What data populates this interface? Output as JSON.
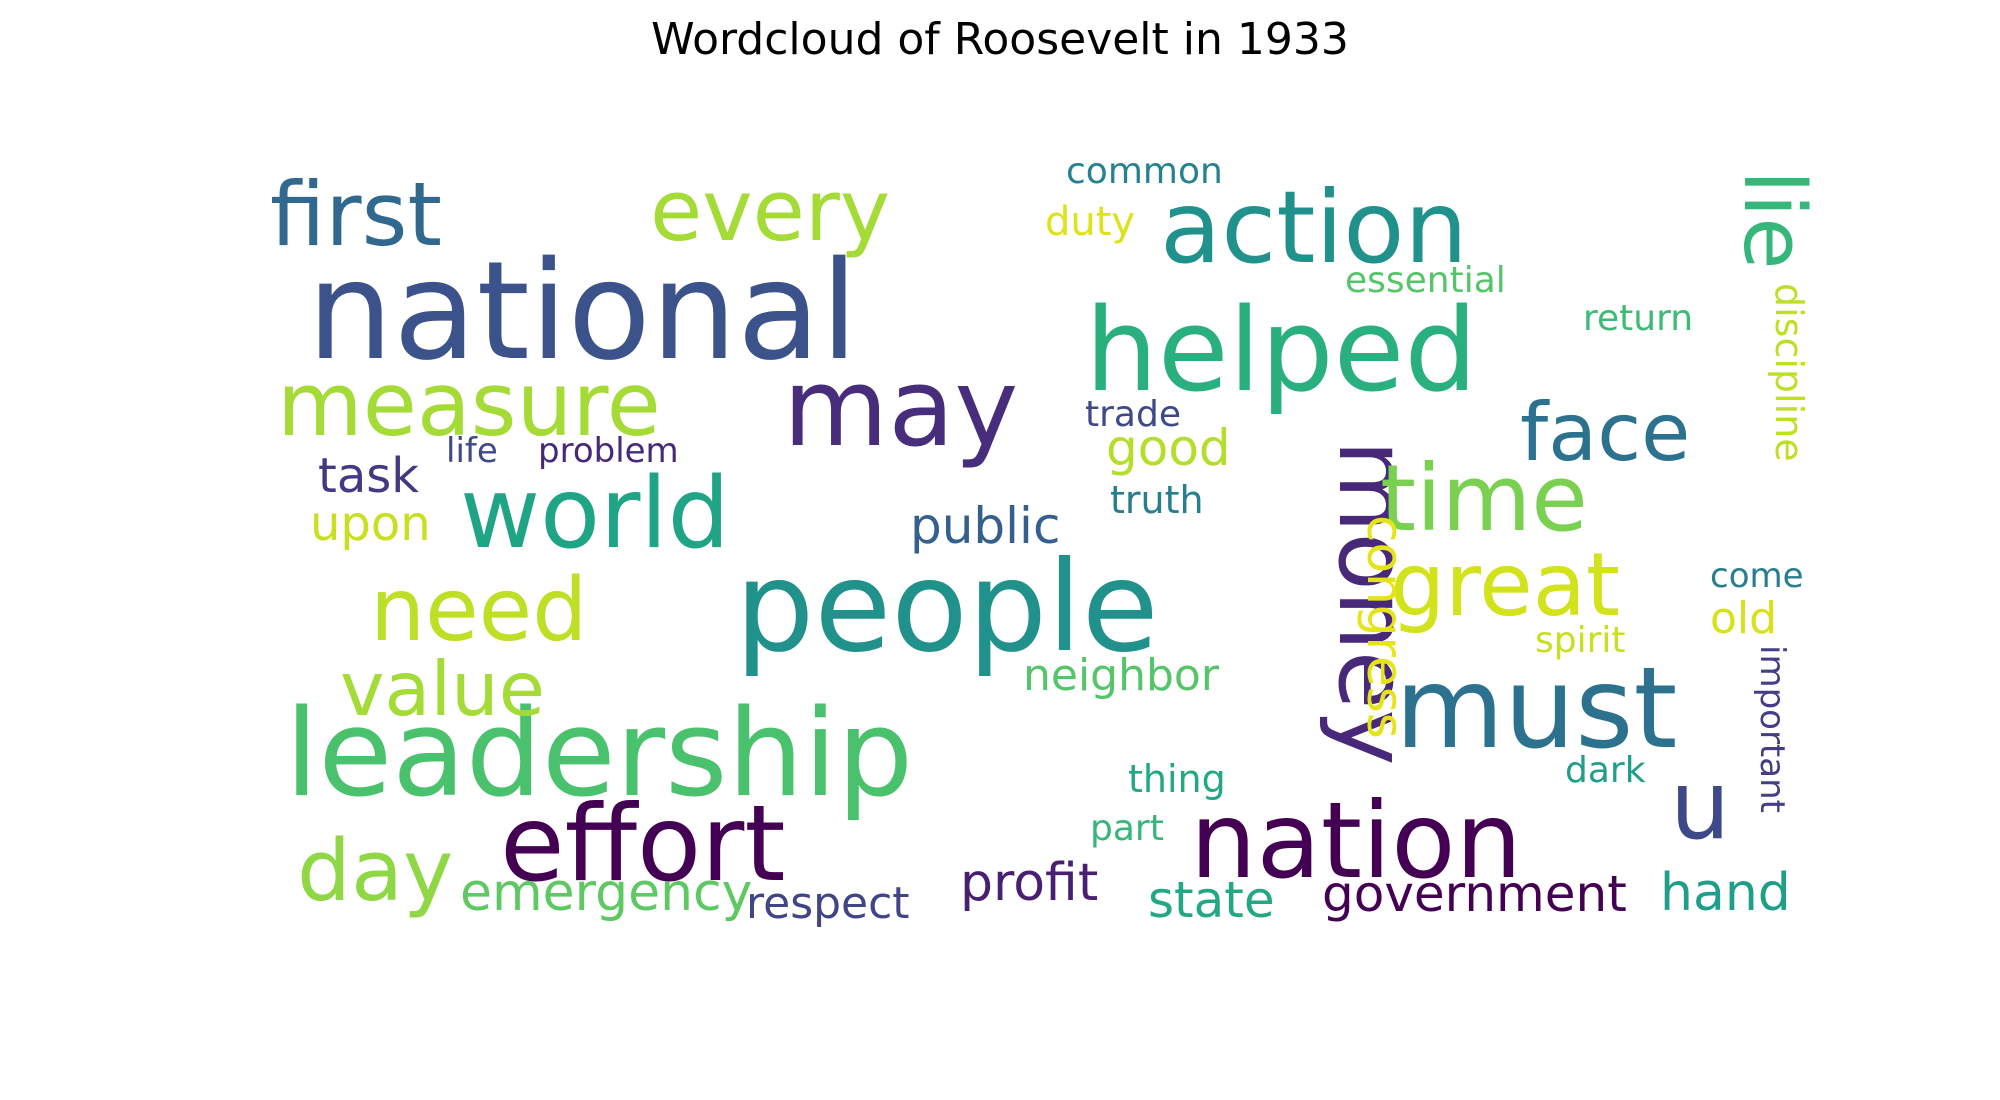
{
  "title": "Wordcloud of Roosevelt in 1933",
  "words": [
    {
      "text": "national",
      "color": "#3b528b"
    },
    {
      "text": "people",
      "color": "#21918c"
    },
    {
      "text": "leadership",
      "color": "#4ac16d"
    },
    {
      "text": "helped",
      "color": "#2ab07f"
    },
    {
      "text": "may",
      "color": "#472d7b"
    },
    {
      "text": "effort",
      "color": "#440154"
    },
    {
      "text": "nation",
      "color": "#440154"
    },
    {
      "text": "must",
      "color": "#2c728e"
    },
    {
      "text": "action",
      "color": "#21918c"
    },
    {
      "text": "world",
      "color": "#20a486"
    },
    {
      "text": "first",
      "color": "#31688e"
    },
    {
      "text": "measure",
      "color": "#a5db36"
    },
    {
      "text": "every",
      "color": "#a5db36"
    },
    {
      "text": "money",
      "color": "#482878"
    },
    {
      "text": "time",
      "color": "#7ad151"
    },
    {
      "text": "great",
      "color": "#d2e21b"
    },
    {
      "text": "need",
      "color": "#bddf26"
    },
    {
      "text": "day",
      "color": "#8fd744"
    },
    {
      "text": "value",
      "color": "#a5db36"
    },
    {
      "text": "lie",
      "color": "#35b779"
    },
    {
      "text": "face",
      "color": "#2c728e"
    },
    {
      "text": "u",
      "color": "#3e4989"
    },
    {
      "text": "emergency",
      "color": "#5ec962"
    },
    {
      "text": "government",
      "color": "#440154"
    },
    {
      "text": "profit",
      "color": "#481f71"
    },
    {
      "text": "public",
      "color": "#355f8d"
    },
    {
      "text": "state",
      "color": "#22a884"
    },
    {
      "text": "hand",
      "color": "#1f9e89"
    },
    {
      "text": "congress",
      "color": "#e5e419"
    },
    {
      "text": "good",
      "color": "#b5de2b"
    },
    {
      "text": "neighbor",
      "color": "#54c568"
    },
    {
      "text": "task",
      "color": "#453781"
    },
    {
      "text": "upon",
      "color": "#c8e020"
    },
    {
      "text": "respect",
      "color": "#414487"
    },
    {
      "text": "discipline",
      "color": "#bddf26"
    },
    {
      "text": "old",
      "color": "#d8e219"
    },
    {
      "text": "important",
      "color": "#433e85"
    },
    {
      "text": "common",
      "color": "#26828e"
    },
    {
      "text": "duty",
      "color": "#dde318"
    },
    {
      "text": "essential",
      "color": "#54c568"
    },
    {
      "text": "return",
      "color": "#3bbb75"
    },
    {
      "text": "trade",
      "color": "#3e4989"
    },
    {
      "text": "truth",
      "color": "#287d8e"
    },
    {
      "text": "life",
      "color": "#3e4989"
    },
    {
      "text": "problem",
      "color": "#482878"
    },
    {
      "text": "come",
      "color": "#287d8e"
    },
    {
      "text": "spirit",
      "color": "#c8e020"
    },
    {
      "text": "thing",
      "color": "#22a884"
    },
    {
      "text": "dark",
      "color": "#1f9e89"
    },
    {
      "text": "part",
      "color": "#35b779"
    }
  ]
}
